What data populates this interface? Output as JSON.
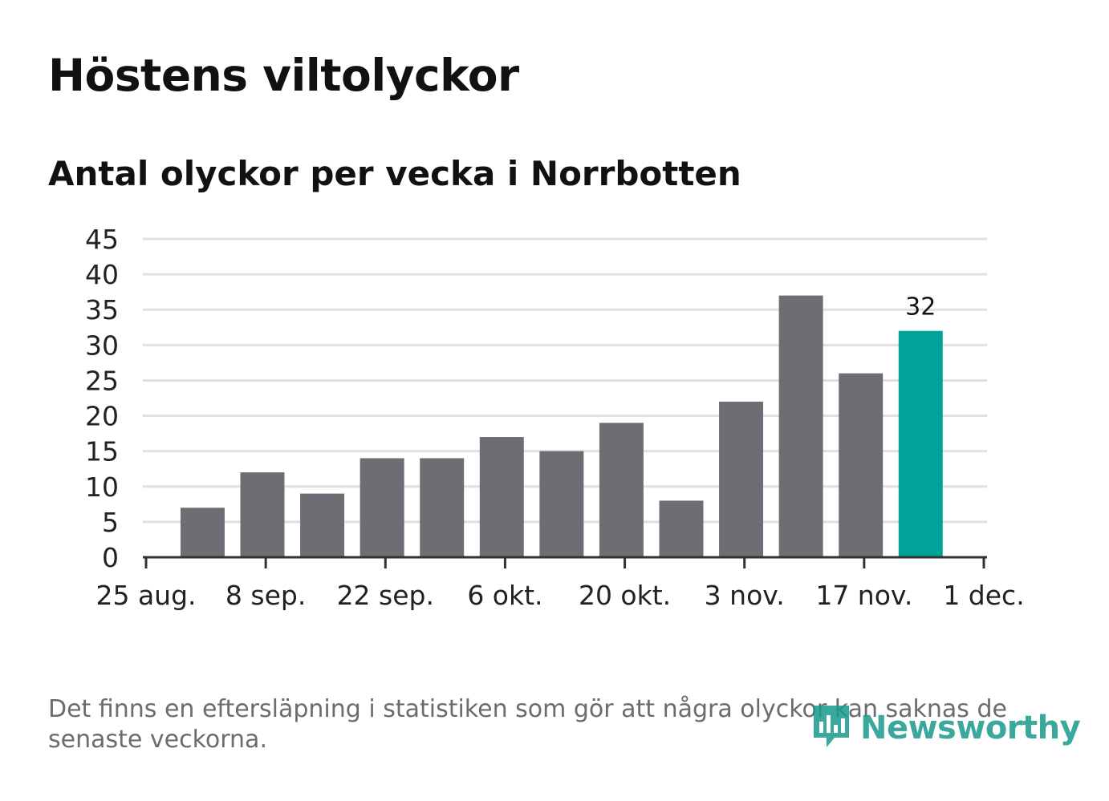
{
  "header": {
    "title": "Höstens viltolyckor",
    "subtitle": "Antal olyckor per vecka i Norrbotten"
  },
  "footer": {
    "note": "Det finns en eftersläpning i statistiken som gör att några olyckor kan saknas de senaste veckorna.",
    "logo_text": "Newsworthy",
    "logo_icon": "bar-chart-badge-icon"
  },
  "colors": {
    "bar": "#6e6d73",
    "highlight": "#00a398",
    "grid": "#e0e0e0",
    "axis": "#333333",
    "text": "#222222",
    "muted": "#6b6b70",
    "logo": "#1a9a8d"
  },
  "chart_data": {
    "type": "bar",
    "title": "Antal olyckor per vecka i Norrbotten",
    "xlabel": "",
    "ylabel": "",
    "ylim": [
      0,
      45
    ],
    "yticks": [
      "0",
      "5",
      "10",
      "15",
      "20",
      "25",
      "30",
      "35",
      "40",
      "45"
    ],
    "x_domain_days": [
      0,
      98
    ],
    "xticks": [
      {
        "day": 0,
        "label": "25 aug."
      },
      {
        "day": 14,
        "label": "8 sep."
      },
      {
        "day": 28,
        "label": "22 sep."
      },
      {
        "day": 42,
        "label": "6 okt."
      },
      {
        "day": 56,
        "label": "20 okt."
      },
      {
        "day": 70,
        "label": "3 nov."
      },
      {
        "day": 84,
        "label": "17 nov."
      },
      {
        "day": 98,
        "label": "1 dec."
      }
    ],
    "bars": [
      {
        "week_start_day": 4,
        "value": 7
      },
      {
        "week_start_day": 11,
        "value": 12
      },
      {
        "week_start_day": 18,
        "value": 9
      },
      {
        "week_start_day": 25,
        "value": 14
      },
      {
        "week_start_day": 32,
        "value": 14
      },
      {
        "week_start_day": 39,
        "value": 17
      },
      {
        "week_start_day": 46,
        "value": 15
      },
      {
        "week_start_day": 53,
        "value": 19
      },
      {
        "week_start_day": 60,
        "value": 8
      },
      {
        "week_start_day": 67,
        "value": 22
      },
      {
        "week_start_day": 74,
        "value": 37
      },
      {
        "week_start_day": 81,
        "value": 26
      },
      {
        "week_start_day": 88,
        "value": 32
      }
    ],
    "highlight_index": 12,
    "value_label": "32",
    "grid": true,
    "legend": "none"
  }
}
